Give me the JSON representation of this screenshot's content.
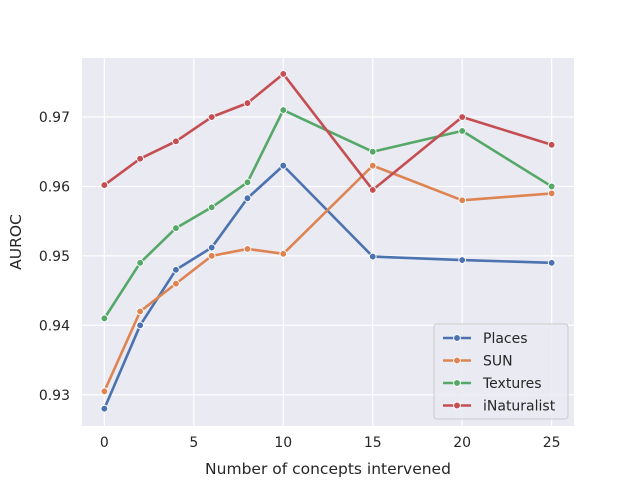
{
  "chart_data": {
    "type": "line",
    "title": "",
    "xlabel": "Number of concepts intervened",
    "ylabel": "AUROC",
    "x": [
      0,
      2,
      4,
      6,
      8,
      10,
      15,
      20,
      25
    ],
    "xlim": [
      -1.25,
      26.25
    ],
    "ylim": [
      0.9255,
      0.9785
    ],
    "xticks": [
      0,
      5,
      10,
      15,
      20,
      25
    ],
    "xtick_labels": [
      "0",
      "5",
      "10",
      "15",
      "20",
      "25"
    ],
    "yticks": [
      0.93,
      0.94,
      0.95,
      0.96,
      0.97
    ],
    "ytick_labels": [
      "0.93",
      "0.94",
      "0.95",
      "0.96",
      "0.97"
    ],
    "grid": true,
    "legend_position": "lower-right",
    "series": [
      {
        "name": "Places",
        "color": "#4c72b0",
        "values": [
          0.928,
          0.94,
          0.948,
          0.9512,
          0.9583,
          0.963,
          0.9499,
          0.9494,
          0.949
        ]
      },
      {
        "name": "SUN",
        "color": "#dd8452",
        "values": [
          0.9305,
          0.942,
          0.946,
          0.95,
          0.951,
          0.9503,
          0.963,
          0.958,
          0.959
        ]
      },
      {
        "name": "Textures",
        "color": "#55a868",
        "values": [
          0.941,
          0.949,
          0.954,
          0.957,
          0.9606,
          0.971,
          0.965,
          0.968,
          0.96
        ]
      },
      {
        "name": "iNaturalist",
        "color": "#c44e52",
        "values": [
          0.9602,
          0.964,
          0.9665,
          0.97,
          0.972,
          0.9762,
          0.9595,
          0.97,
          0.966
        ]
      }
    ]
  }
}
